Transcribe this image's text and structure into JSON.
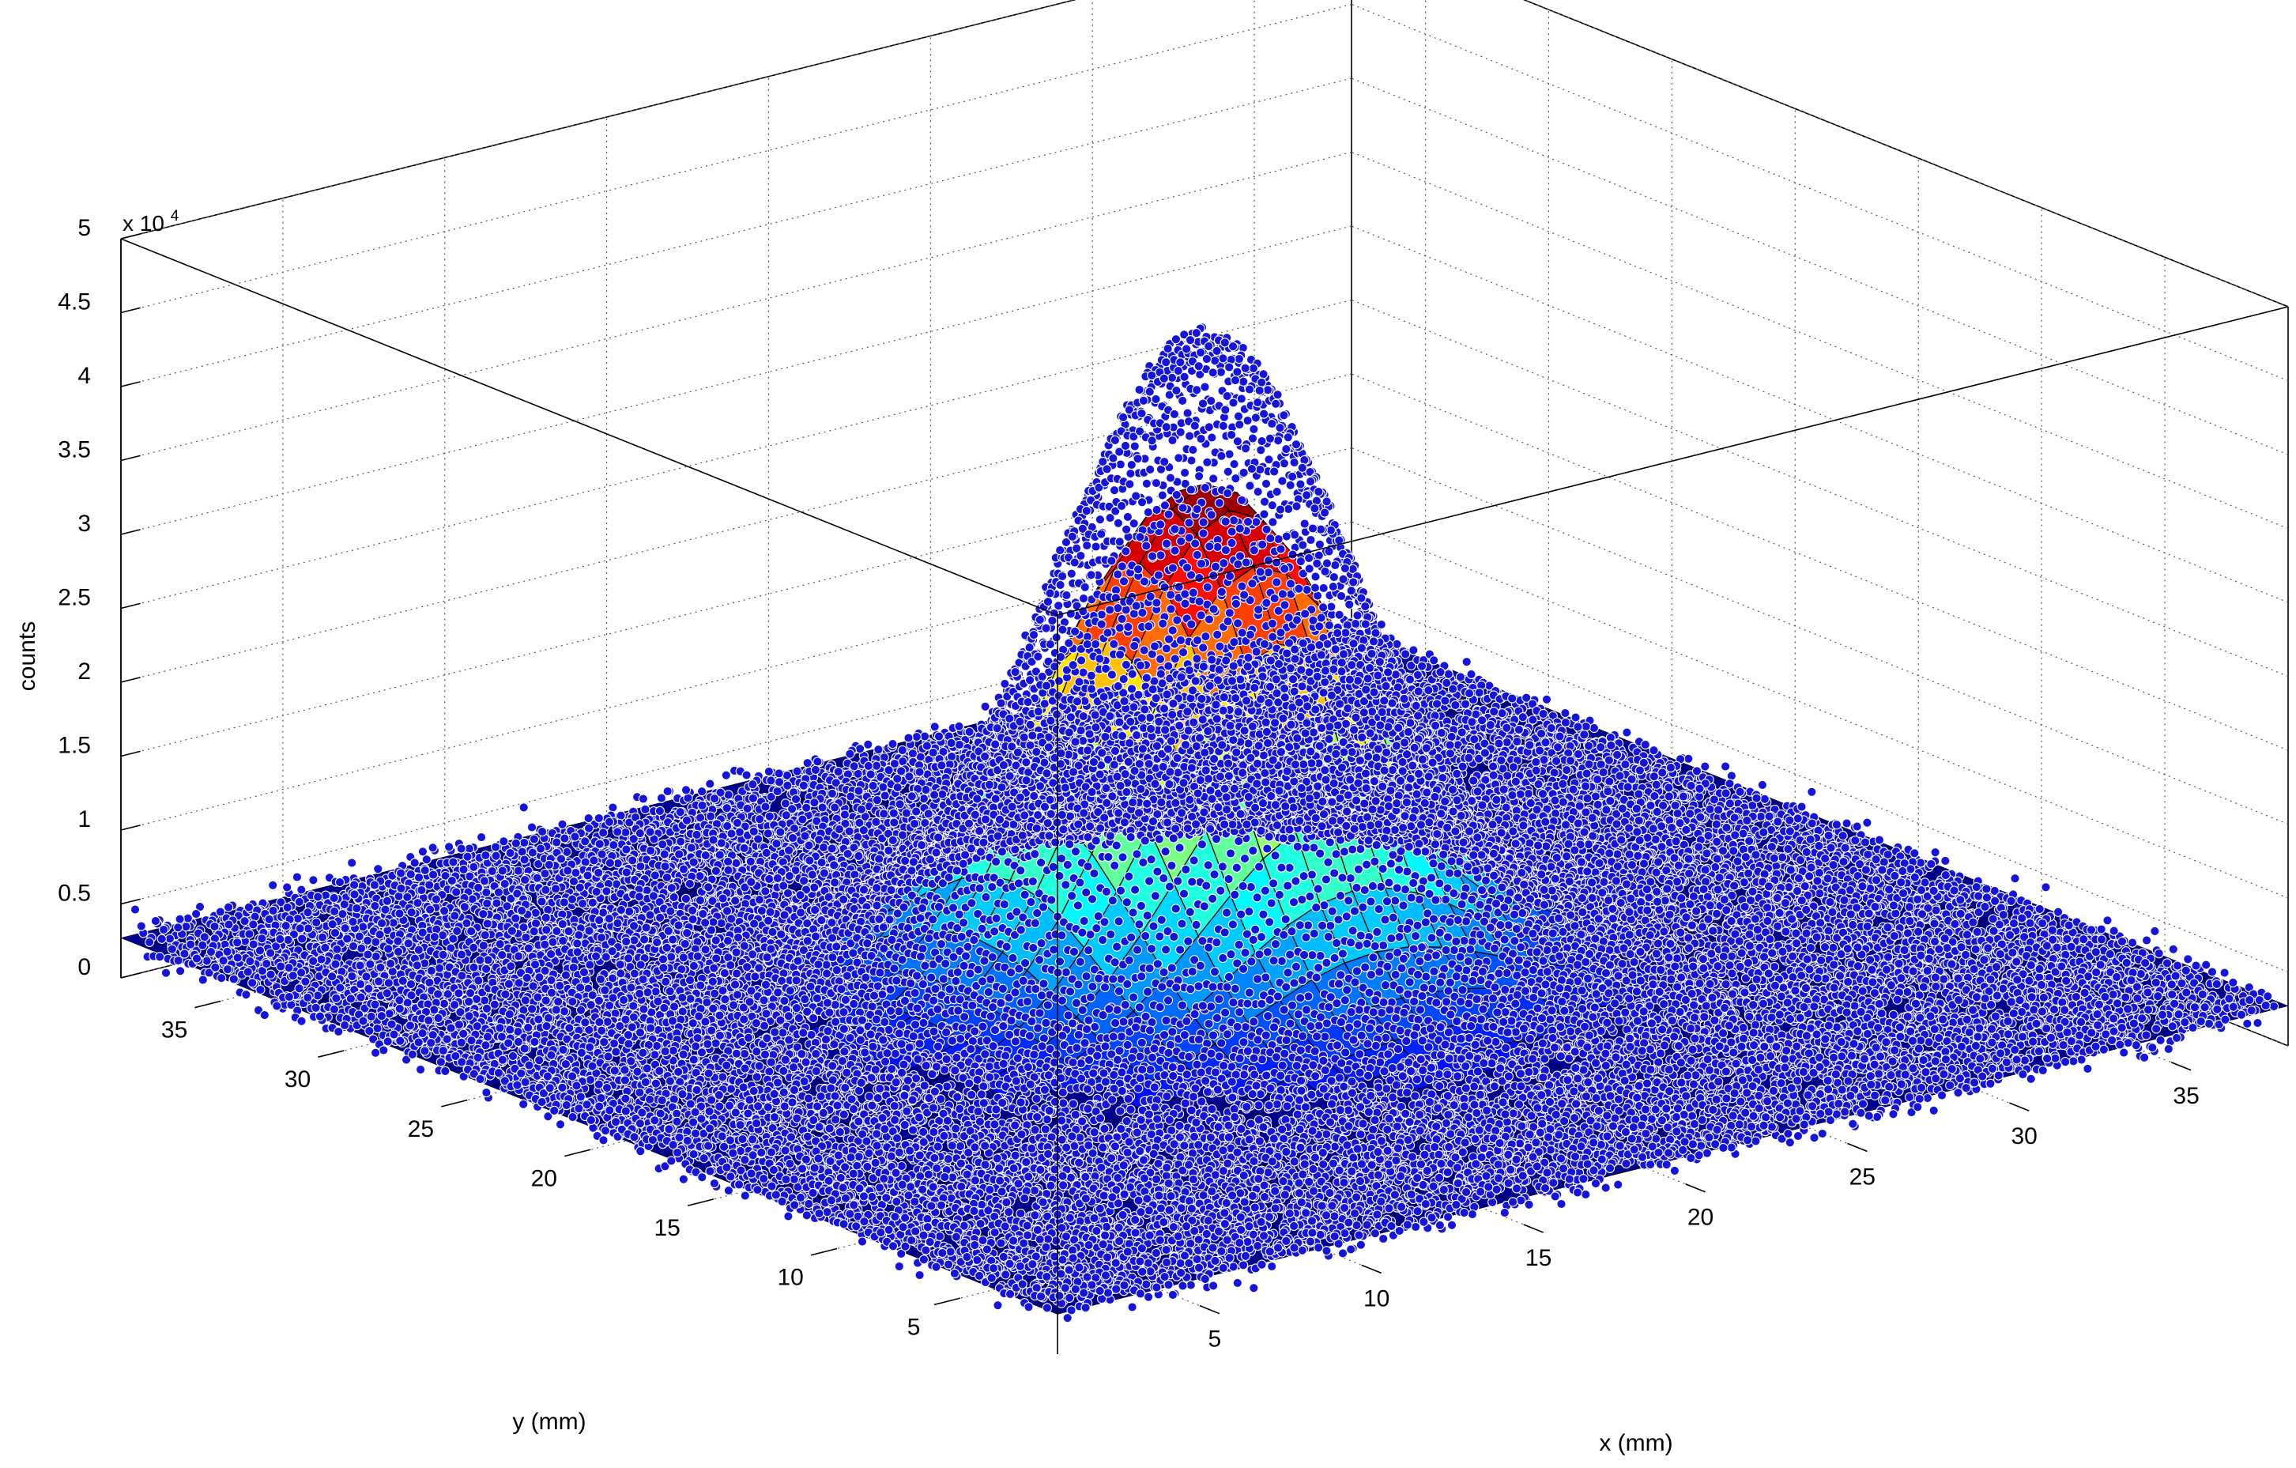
{
  "chart_data": {
    "type": "surface+scatter3d",
    "xlabel": "x (mm)",
    "ylabel": "y (mm)",
    "zlabel": "counts",
    "z_exponent_base": "x 10",
    "z_exponent_power": "4",
    "xlim": [
      0,
      38
    ],
    "ylim": [
      0,
      38
    ],
    "zlim": [
      0,
      50000
    ],
    "xticks": [
      5,
      10,
      15,
      20,
      25,
      30,
      35
    ],
    "xtick_labels": [
      "5",
      "10",
      "15",
      "20",
      "25",
      "30",
      "35"
    ],
    "yticks": [
      5,
      10,
      15,
      20,
      25,
      30,
      35
    ],
    "ytick_labels": [
      "5",
      "10",
      "15",
      "20",
      "25",
      "30",
      "35"
    ],
    "zticks": [
      0,
      5000,
      10000,
      15000,
      20000,
      25000,
      30000,
      35000,
      40000,
      45000,
      50000
    ],
    "ztick_labels": [
      "0",
      "0.5",
      "1",
      "1.5",
      "2",
      "2.5",
      "3",
      "3.5",
      "4",
      "4.5",
      "5"
    ],
    "grid": true,
    "surface": {
      "model": "2D gaussian fit",
      "peak_counts": 33000,
      "center_x": 19,
      "center_y": 19,
      "sigma_x": 3.8,
      "sigma_y": 3.8,
      "baseline_counts": 2700,
      "grid_step": 1,
      "colormap": "jet",
      "edge_color": "#000000"
    },
    "scatter": {
      "marker_color": "#1414dc",
      "marker_edge": "#ffffff",
      "peak_counts": 43000,
      "center_x": 19,
      "center_y": 19,
      "sigma": 3.8,
      "baseline_counts": 2700,
      "noise_counts": 1200,
      "spacing": 0.25
    }
  }
}
